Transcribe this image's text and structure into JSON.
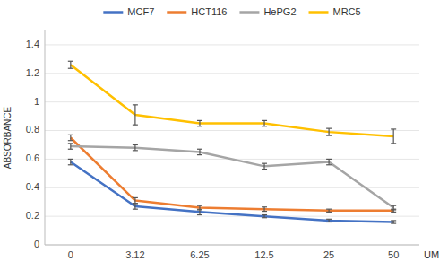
{
  "chart_data": {
    "type": "line",
    "x_label": "UM",
    "y_label": "ABSORBANCE",
    "categories": [
      "0",
      "3.12",
      "6.25",
      "12.5",
      "25",
      "50"
    ],
    "series": [
      {
        "name": "MCF7",
        "color": "#4472C4",
        "values": [
          0.58,
          0.27,
          0.23,
          0.2,
          0.17,
          0.16
        ],
        "yerr": [
          0.02,
          0.02,
          0.02,
          0.01,
          0.01,
          0.01
        ]
      },
      {
        "name": "HCT116",
        "color": "#ED7D31",
        "values": [
          0.75,
          0.31,
          0.26,
          0.25,
          0.24,
          0.24
        ],
        "yerr": [
          0.02,
          0.02,
          0.015,
          0.015,
          0.01,
          0.01
        ]
      },
      {
        "name": "HePG2",
        "color": "#A5A5A5",
        "values": [
          0.69,
          0.68,
          0.65,
          0.55,
          0.58,
          0.26
        ],
        "yerr": [
          0.02,
          0.02,
          0.02,
          0.02,
          0.02,
          0.015
        ]
      },
      {
        "name": "MRC5",
        "color": "#FFC000",
        "values": [
          1.26,
          0.91,
          0.85,
          0.85,
          0.79,
          0.76
        ],
        "yerr": [
          0.025,
          0.07,
          0.02,
          0.02,
          0.025,
          0.05
        ]
      }
    ],
    "ylim": [
      0,
      1.5
    ],
    "yticks": [
      0,
      0.2,
      0.4,
      0.6,
      0.8,
      1,
      1.2,
      1.4
    ],
    "grid": true,
    "legend": "top"
  }
}
